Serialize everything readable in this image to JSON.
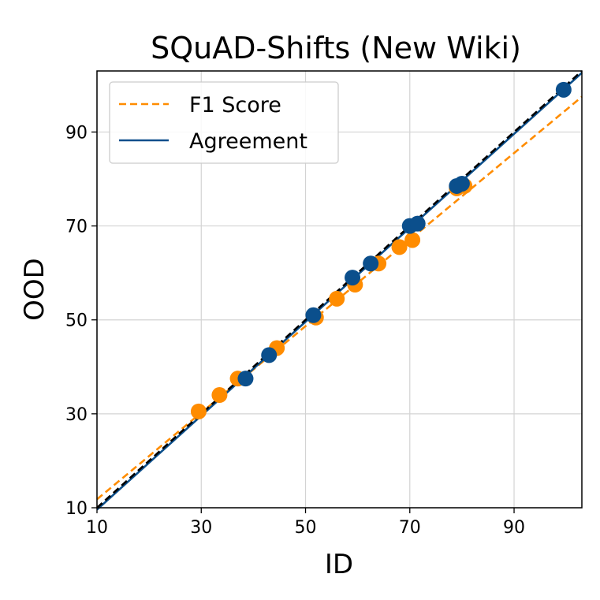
{
  "chart_data": {
    "type": "scatter",
    "title": "SQuAD-Shifts (New Wiki)",
    "xlabel": "ID",
    "ylabel": "OOD",
    "xlim": [
      10,
      103
    ],
    "ylim": [
      10,
      103
    ],
    "x_ticks": [
      10,
      30,
      50,
      70,
      90
    ],
    "y_ticks": [
      10,
      30,
      50,
      70,
      90
    ],
    "grid": true,
    "legend_position": "top-left",
    "series": [
      {
        "name": "F1 Score",
        "color": "#ff8c00",
        "fit_line": {
          "style": "dashed",
          "x": [
            10,
            103
          ],
          "y": [
            11.8,
            97.5
          ]
        },
        "points": [
          {
            "x": 29.5,
            "y": 30.5
          },
          {
            "x": 33.5,
            "y": 34.0
          },
          {
            "x": 37.0,
            "y": 37.5
          },
          {
            "x": 44.5,
            "y": 44.0
          },
          {
            "x": 52.0,
            "y": 50.5
          },
          {
            "x": 56.0,
            "y": 54.5
          },
          {
            "x": 59.5,
            "y": 57.5
          },
          {
            "x": 64.0,
            "y": 62.0
          },
          {
            "x": 68.0,
            "y": 65.5
          },
          {
            "x": 70.5,
            "y": 67.0
          },
          {
            "x": 79.0,
            "y": 78.0
          },
          {
            "x": 80.5,
            "y": 78.5
          }
        ]
      },
      {
        "name": "Agreement",
        "color": "#0b4f8c",
        "fit_line": {
          "style": "solid",
          "x": [
            10,
            103
          ],
          "y": [
            9.6,
            102.6
          ]
        },
        "points": [
          {
            "x": 38.5,
            "y": 37.5
          },
          {
            "x": 43.0,
            "y": 42.5
          },
          {
            "x": 51.5,
            "y": 51.0
          },
          {
            "x": 59.0,
            "y": 59.0
          },
          {
            "x": 62.5,
            "y": 62.0
          },
          {
            "x": 70.0,
            "y": 70.0
          },
          {
            "x": 71.5,
            "y": 70.5
          },
          {
            "x": 79.0,
            "y": 78.5
          },
          {
            "x": 80.0,
            "y": 79.0
          },
          {
            "x": 99.5,
            "y": 99.0
          }
        ]
      }
    ],
    "reference_line": {
      "style": "dashed",
      "color": "#000000",
      "x": [
        10,
        103
      ],
      "y": [
        10,
        103
      ]
    }
  }
}
